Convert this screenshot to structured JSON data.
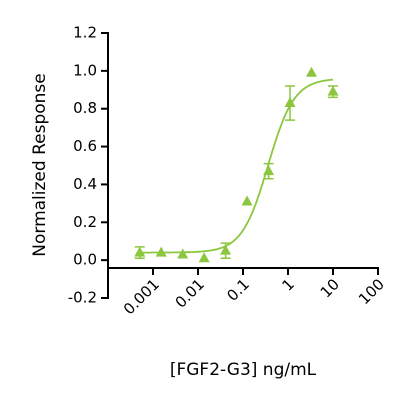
{
  "chart_data": {
    "type": "scatter",
    "x_label": "[FGF2-G3] ng/mL",
    "y_label": "Normalized Response",
    "x": [
      0.000508,
      0.00152,
      0.00457,
      0.0137,
      0.041,
      0.123,
      0.37,
      1.11,
      3.33,
      10
    ],
    "values": [
      0.04,
      0.04,
      0.03,
      0.01,
      0.05,
      0.31,
      0.47,
      0.83,
      0.99,
      0.89
    ],
    "errors": [
      0.03,
      null,
      null,
      null,
      0.04,
      null,
      0.04,
      0.09,
      null,
      0.03
    ],
    "fit": {
      "bottom": 0.04,
      "top": 0.96,
      "ec50": 0.36,
      "hill": 1.5
    },
    "color": "#8cc63f",
    "xscale": "log",
    "xlim": [
      0.0001,
      100
    ],
    "xticks": [
      0.001,
      0.01,
      0.1,
      1,
      10,
      100
    ],
    "ylim": [
      -0.2,
      1.2
    ],
    "yticks": [
      -0.2,
      {
        "value": 0,
        "label": "0.0"
      },
      0.2,
      0.4,
      0.6,
      0.8,
      {
        "value": 1,
        "label": "1.0"
      },
      1.2
    ]
  }
}
